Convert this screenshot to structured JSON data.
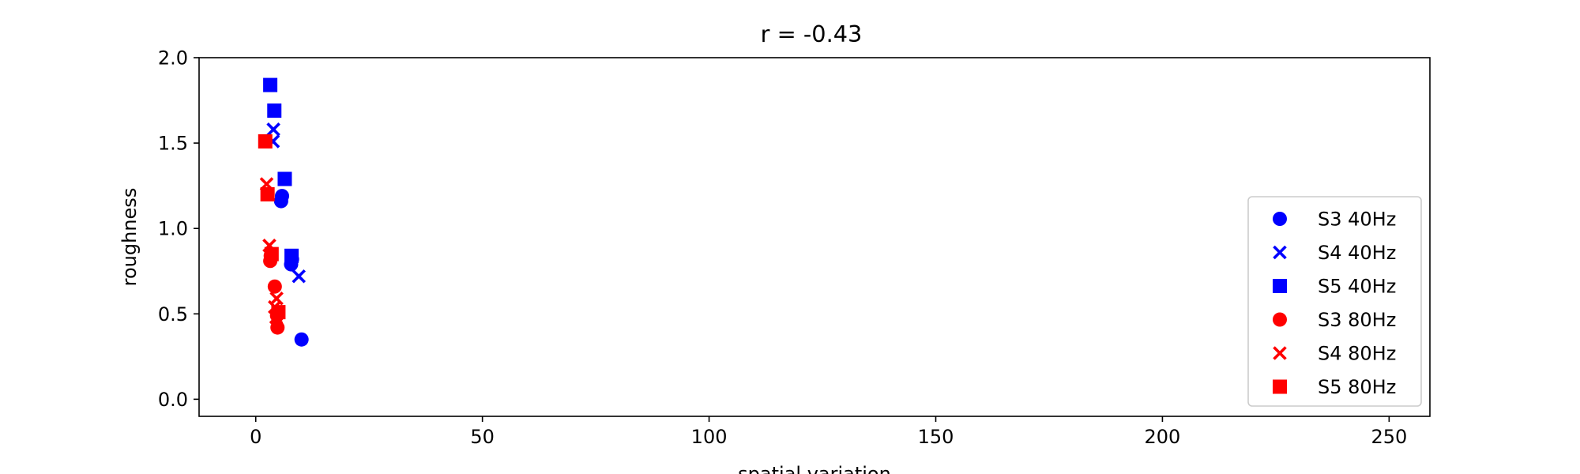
{
  "chart_data": {
    "type": "scatter",
    "title": "r = -0.43",
    "xlabel": "spatial variation",
    "ylabel": "roughness",
    "xlim": [
      -12.5,
      259
    ],
    "ylim": [
      -0.1,
      2.0
    ],
    "xticks": [
      "0",
      "50",
      "100",
      "150",
      "200",
      "250"
    ],
    "yticks": [
      "0.0",
      "0.5",
      "1.0",
      "1.5",
      "2.0"
    ],
    "legend_position": "lower right",
    "grid": false,
    "series": [
      {
        "name": "S3 40Hz",
        "marker": "circle",
        "color": "#0000ff",
        "points": [
          [
            5.8,
            1.19
          ],
          [
            5.6,
            1.16
          ],
          [
            7.8,
            0.79
          ],
          [
            10.1,
            0.35
          ],
          [
            8.0,
            0.82
          ]
        ]
      },
      {
        "name": "S4 40Hz",
        "marker": "x",
        "color": "#0000ff",
        "points": [
          [
            3.9,
            1.58
          ],
          [
            3.8,
            1.51
          ],
          [
            9.5,
            0.72
          ]
        ]
      },
      {
        "name": "S5 40Hz",
        "marker": "square",
        "color": "#0000ff",
        "points": [
          [
            3.2,
            1.84
          ],
          [
            4.1,
            1.69
          ],
          [
            6.4,
            1.29
          ],
          [
            7.9,
            0.84
          ]
        ]
      },
      {
        "name": "S3 80Hz",
        "marker": "circle",
        "color": "#ff0000",
        "points": [
          [
            3.2,
            0.81
          ],
          [
            3.3,
            0.84
          ],
          [
            4.2,
            0.66
          ],
          [
            4.7,
            0.49
          ],
          [
            4.8,
            0.42
          ]
        ]
      },
      {
        "name": "S4 80Hz",
        "marker": "x",
        "color": "#ff0000",
        "points": [
          [
            2.4,
            1.26
          ],
          [
            3.0,
            0.9
          ],
          [
            4.2,
            0.54
          ],
          [
            4.6,
            0.59
          ],
          [
            4.5,
            0.48
          ]
        ]
      },
      {
        "name": "S5 80Hz",
        "marker": "square",
        "color": "#ff0000",
        "points": [
          [
            2.1,
            1.51
          ],
          [
            2.6,
            1.2
          ],
          [
            3.5,
            0.85
          ],
          [
            5.0,
            0.51
          ]
        ]
      }
    ]
  }
}
